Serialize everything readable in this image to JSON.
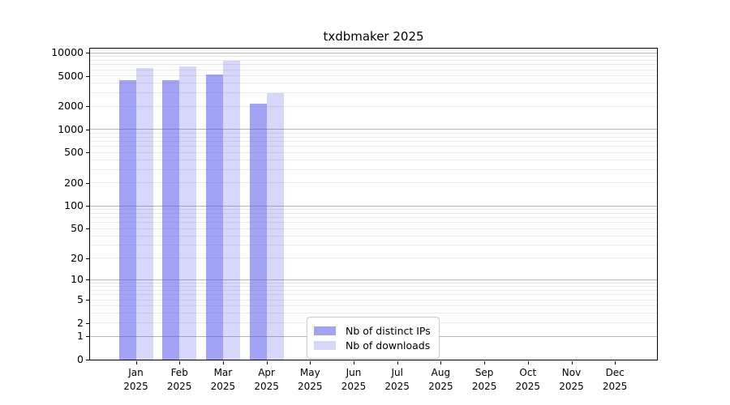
{
  "title": "txdbmaker 2025",
  "chart_data": {
    "type": "bar",
    "title": "txdbmaker 2025",
    "categories": [
      "Jan",
      "Feb",
      "Mar",
      "Apr",
      "May",
      "Jun",
      "Jul",
      "Aug",
      "Sep",
      "Oct",
      "Nov",
      "Dec"
    ],
    "category_year": "2025",
    "series": [
      {
        "name": "Nb of distinct IPs",
        "color": "#6666ee",
        "alpha": 0.6,
        "values": [
          4400,
          4450,
          5150,
          2150,
          0,
          0,
          0,
          0,
          0,
          0,
          0,
          0
        ]
      },
      {
        "name": "Nb of downloads",
        "color": "#6666ee",
        "alpha": 0.26,
        "values": [
          6300,
          6600,
          7900,
          3000,
          0,
          0,
          0,
          0,
          0,
          0,
          0,
          0
        ]
      }
    ],
    "xlabel": "",
    "ylabel": "",
    "y_ticks": [
      0,
      1,
      2,
      5,
      10,
      20,
      50,
      100,
      200,
      500,
      1000,
      2000,
      5000,
      10000
    ],
    "y_scale": "log10(value+1)",
    "ylim": [
      0,
      12800
    ],
    "grid": "horizontal",
    "legend_position": "inside-bottom-center",
    "colors": {
      "grid_major": "#b5b5b5",
      "grid_minor": "#e8e8e8",
      "axis": "#000000",
      "background": "#ffffff",
      "text": "#000000"
    }
  }
}
